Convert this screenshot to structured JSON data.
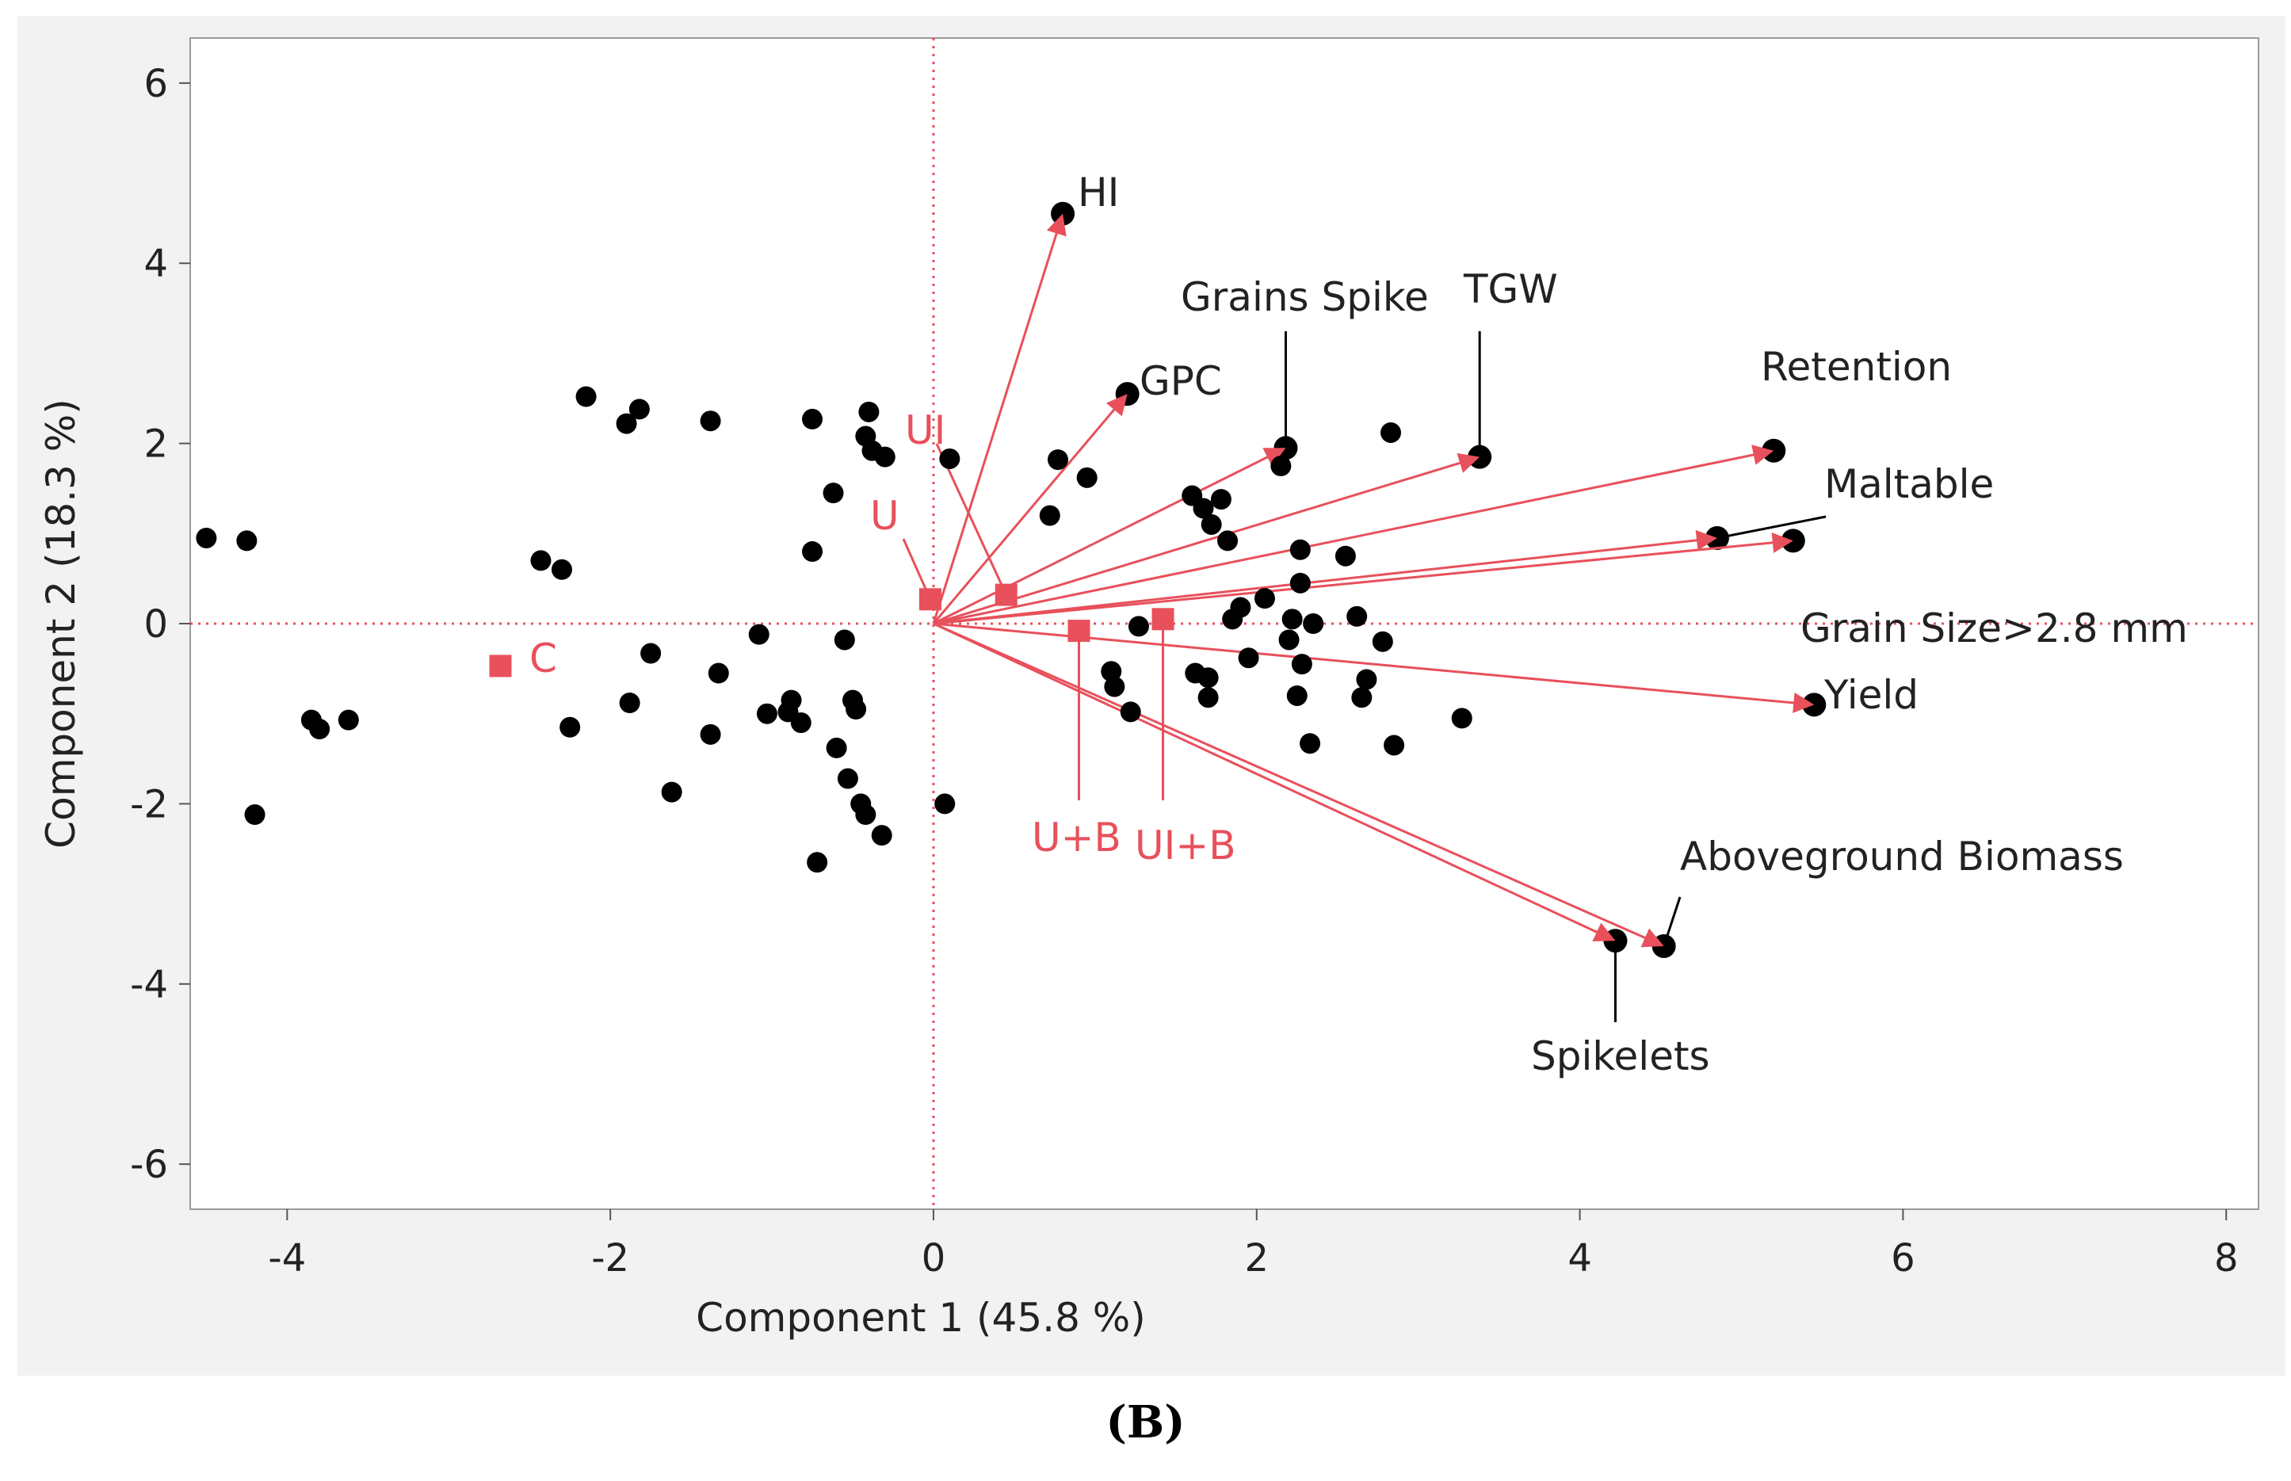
{
  "caption": "(B)",
  "chart_data": {
    "type": "scatter",
    "title": "",
    "xlabel": "Component 1  (45.8 %)",
    "ylabel": "Component 2  (18.3 %)",
    "xlim": [
      -4.6,
      8.2
    ],
    "ylim": [
      -6.5,
      6.5
    ],
    "xticks": [
      -4,
      -2,
      0,
      2,
      4,
      6,
      8
    ],
    "yticks": [
      -6,
      -4,
      -2,
      0,
      2,
      4,
      6
    ],
    "grid": false,
    "reference_lines": {
      "x": 0,
      "y": 0,
      "style": "dotted",
      "color": "#e8505b"
    },
    "colors": {
      "points": "#000000",
      "vectors": "#e8505b",
      "groups": "#e8505b"
    },
    "scores": [
      [
        -4.5,
        0.95
      ],
      [
        -4.25,
        0.92
      ],
      [
        -4.2,
        -2.12
      ],
      [
        -3.85,
        -1.07
      ],
      [
        -3.8,
        -1.17
      ],
      [
        -3.62,
        -1.07
      ],
      [
        -2.43,
        0.7
      ],
      [
        -2.3,
        0.6
      ],
      [
        -2.25,
        -1.15
      ],
      [
        -2.15,
        2.52
      ],
      [
        -1.9,
        2.22
      ],
      [
        -1.82,
        2.38
      ],
      [
        -1.88,
        -0.88
      ],
      [
        -1.75,
        -0.33
      ],
      [
        -1.62,
        -1.87
      ],
      [
        -1.38,
        2.25
      ],
      [
        -1.38,
        -1.23
      ],
      [
        -1.33,
        -0.55
      ],
      [
        -1.08,
        -0.12
      ],
      [
        -1.03,
        -1.0
      ],
      [
        -0.9,
        -0.98
      ],
      [
        -0.88,
        -0.85
      ],
      [
        -0.82,
        -1.1
      ],
      [
        -0.75,
        2.27
      ],
      [
        -0.75,
        0.8
      ],
      [
        -0.72,
        -2.65
      ],
      [
        -0.62,
        1.45
      ],
      [
        -0.6,
        -1.38
      ],
      [
        -0.55,
        -0.18
      ],
      [
        -0.53,
        -1.72
      ],
      [
        -0.5,
        -0.85
      ],
      [
        -0.48,
        -0.95
      ],
      [
        -0.45,
        -2.0
      ],
      [
        -0.42,
        -2.12
      ],
      [
        -0.4,
        2.35
      ],
      [
        -0.42,
        2.08
      ],
      [
        -0.38,
        1.92
      ],
      [
        -0.3,
        1.85
      ],
      [
        -0.32,
        -2.35
      ],
      [
        0.07,
        -2.0
      ],
      [
        0.1,
        1.83
      ],
      [
        0.72,
        1.2
      ],
      [
        0.77,
        1.82
      ],
      [
        0.95,
        1.62
      ],
      [
        1.1,
        -0.53
      ],
      [
        1.12,
        -0.7
      ],
      [
        1.22,
        -0.98
      ],
      [
        1.27,
        -0.03
      ],
      [
        1.6,
        1.42
      ],
      [
        1.62,
        -0.55
      ],
      [
        1.67,
        1.28
      ],
      [
        1.7,
        -0.6
      ],
      [
        1.7,
        -0.82
      ],
      [
        1.72,
        1.1
      ],
      [
        1.78,
        1.38
      ],
      [
        1.82,
        0.92
      ],
      [
        1.85,
        0.05
      ],
      [
        1.9,
        0.18
      ],
      [
        1.95,
        -0.38
      ],
      [
        2.05,
        0.28
      ],
      [
        2.15,
        1.75
      ],
      [
        2.2,
        -0.18
      ],
      [
        2.22,
        0.05
      ],
      [
        2.25,
        -0.8
      ],
      [
        2.27,
        0.45
      ],
      [
        2.27,
        0.82
      ],
      [
        2.28,
        -0.45
      ],
      [
        2.33,
        -1.33
      ],
      [
        2.35,
        0.0
      ],
      [
        2.55,
        0.75
      ],
      [
        2.62,
        0.08
      ],
      [
        2.65,
        -0.82
      ],
      [
        2.68,
        -0.62
      ],
      [
        2.78,
        -0.2
      ],
      [
        2.83,
        2.12
      ],
      [
        2.85,
        -1.35
      ],
      [
        3.27,
        -1.05
      ]
    ],
    "loadings": [
      {
        "label": "HI",
        "x": 0.8,
        "y": 4.55
      },
      {
        "label": "GPC",
        "x": 1.2,
        "y": 2.55
      },
      {
        "label": "Grains Spike",
        "x": 2.18,
        "y": 1.95
      },
      {
        "label": "TGW",
        "x": 3.38,
        "y": 1.85
      },
      {
        "label": "Retention",
        "x": 5.2,
        "y": 1.92
      },
      {
        "label": "Maltable",
        "x": 4.85,
        "y": 0.95
      },
      {
        "label": "Grain Size>2.8 mm",
        "x": 5.32,
        "y": 0.92
      },
      {
        "label": "Yield",
        "x": 5.45,
        "y": -0.9
      },
      {
        "label": "Aboveground Biomass",
        "x": 4.52,
        "y": -3.58
      },
      {
        "label": "Spikelets",
        "x": 4.22,
        "y": -3.52
      }
    ],
    "groups": [
      {
        "label": "C",
        "x": -2.68,
        "y": -0.47
      },
      {
        "label": "U",
        "x": -0.02,
        "y": 0.27
      },
      {
        "label": "UI",
        "x": 0.45,
        "y": 0.32
      },
      {
        "label": "U+B",
        "x": 0.9,
        "y": -0.08
      },
      {
        "label": "UI+B",
        "x": 1.42,
        "y": 0.05
      }
    ]
  }
}
